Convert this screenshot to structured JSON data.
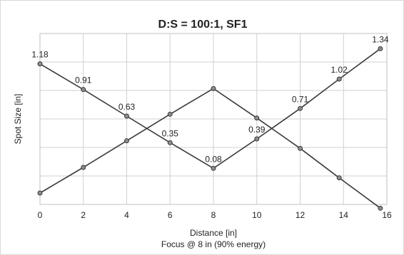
{
  "chart_data": {
    "type": "line",
    "title": "D:S = 100:1, SF1",
    "xlabel": "Distance [in]",
    "xlabel2": "Focus @ 8 in (90% energy)",
    "ylabel": "Spot Size [in]",
    "xlim": [
      0,
      16
    ],
    "x_ticks": [
      "0",
      "2",
      "4",
      "6",
      "8",
      "10",
      "12",
      "14",
      "16"
    ],
    "ylim": [
      -0.3,
      1.5
    ],
    "grid": true,
    "series": [
      {
        "x": [
          0,
          2,
          4,
          6,
          8,
          10,
          12,
          13.8,
          15.7
        ],
        "values": [
          1.18,
          0.91,
          0.63,
          0.35,
          0.08,
          0.39,
          0.71,
          1.02,
          1.34
        ],
        "labels": [
          "1.18",
          "0.91",
          "0.63",
          "0.35",
          "0.08",
          "0.39",
          "0.71",
          "1.02",
          "1.34"
        ]
      },
      {
        "x": [
          0,
          2,
          4,
          6,
          8,
          10,
          12,
          13.8,
          15.7
        ],
        "values": [
          -0.18,
          0.09,
          0.37,
          0.65,
          0.92,
          0.61,
          0.29,
          -0.02,
          -0.34
        ]
      }
    ]
  }
}
